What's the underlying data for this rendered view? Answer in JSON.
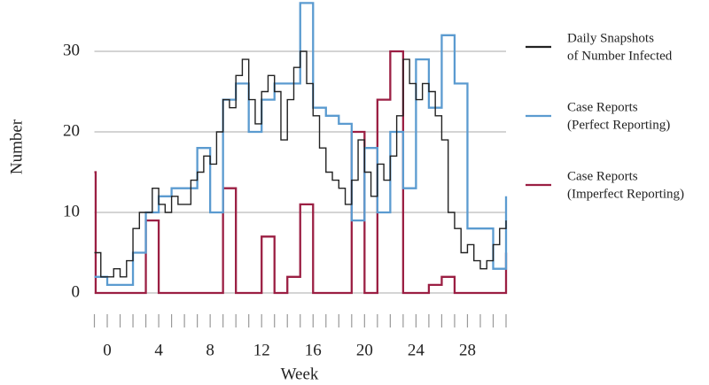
{
  "chart_data": {
    "type": "step",
    "x_label": "Week",
    "y_label": "Number",
    "xlim": [
      -1,
      31
    ],
    "ylim": [
      0,
      36
    ],
    "xticks": [
      0,
      4,
      8,
      12,
      16,
      20,
      24,
      28
    ],
    "xminor_ticks": [
      -1,
      0,
      1,
      2,
      3,
      4,
      5,
      6,
      7,
      8,
      9,
      10,
      11,
      12,
      13,
      14,
      15,
      16,
      17,
      18,
      19,
      20,
      21,
      22,
      23,
      24,
      25,
      26,
      27,
      28,
      29,
      30,
      31
    ],
    "yticks": [
      0,
      10,
      20,
      30
    ],
    "grid": true,
    "series": [
      {
        "name": [
          "Daily Snapshots",
          "of Number Infected"
        ],
        "color": "#222222",
        "x": [
          -1,
          -0.5,
          0,
          0.5,
          1,
          1.5,
          2,
          2.5,
          3,
          3.5,
          4,
          4.5,
          5,
          5.5,
          6,
          6.5,
          7,
          7.5,
          8,
          8.5,
          9,
          9.5,
          10,
          10.5,
          11,
          11.5,
          12,
          12.5,
          13,
          13.5,
          14,
          14.5,
          15,
          15.5,
          16,
          16.5,
          17,
          17.5,
          18,
          18.5,
          19,
          19.5,
          20,
          20.5,
          21,
          21.5,
          22,
          22.5,
          23,
          23.5,
          24,
          24.5,
          25,
          25.5,
          26,
          26.5,
          27,
          27.5,
          28,
          28.5,
          29,
          29.5,
          30,
          30.5,
          31
        ],
        "values": [
          5,
          2,
          2,
          3,
          2,
          4,
          8,
          10,
          10,
          13,
          11,
          10,
          12,
          11,
          11,
          14,
          15,
          17,
          16,
          20,
          24,
          23,
          27,
          29,
          24,
          21,
          25,
          27,
          25,
          19,
          24,
          28,
          30,
          26,
          22,
          18,
          15,
          14,
          13,
          11,
          14,
          19,
          15,
          12,
          16,
          14,
          17,
          22,
          29,
          26,
          24,
          26,
          25,
          22,
          19,
          10,
          8,
          5,
          6,
          4,
          3,
          4,
          6,
          8,
          9
        ]
      },
      {
        "name": [
          "Case Reports",
          "(Perfect Reporting)"
        ],
        "color": "#5b9bd0",
        "x": [
          -1,
          0,
          1,
          2,
          3,
          4,
          5,
          6,
          7,
          8,
          9,
          10,
          11,
          12,
          13,
          14,
          15,
          16,
          17,
          18,
          19,
          20,
          21,
          22,
          23,
          24,
          25,
          26,
          27,
          28,
          29,
          30,
          31
        ],
        "values": [
          2,
          1,
          1,
          5,
          10,
          12,
          13,
          13,
          18,
          10,
          24,
          26,
          20,
          24,
          26,
          26,
          36,
          23,
          22,
          21,
          9,
          18,
          10,
          20,
          13,
          29,
          23,
          32,
          26,
          8,
          8,
          3,
          12
        ]
      },
      {
        "name": [
          "Case Reports",
          "(Imperfect Reporting)"
        ],
        "color": "#9b1f43",
        "x": [
          -1,
          -0.9,
          3,
          4,
          9,
          10,
          12,
          13,
          14,
          15,
          16,
          19,
          20,
          21,
          22,
          23,
          25,
          26,
          27,
          31
        ],
        "values": [
          15,
          0,
          9,
          0,
          13,
          0,
          7,
          0,
          2,
          11,
          0,
          20,
          0,
          24,
          30,
          0,
          1,
          2,
          0,
          5
        ]
      }
    ]
  }
}
